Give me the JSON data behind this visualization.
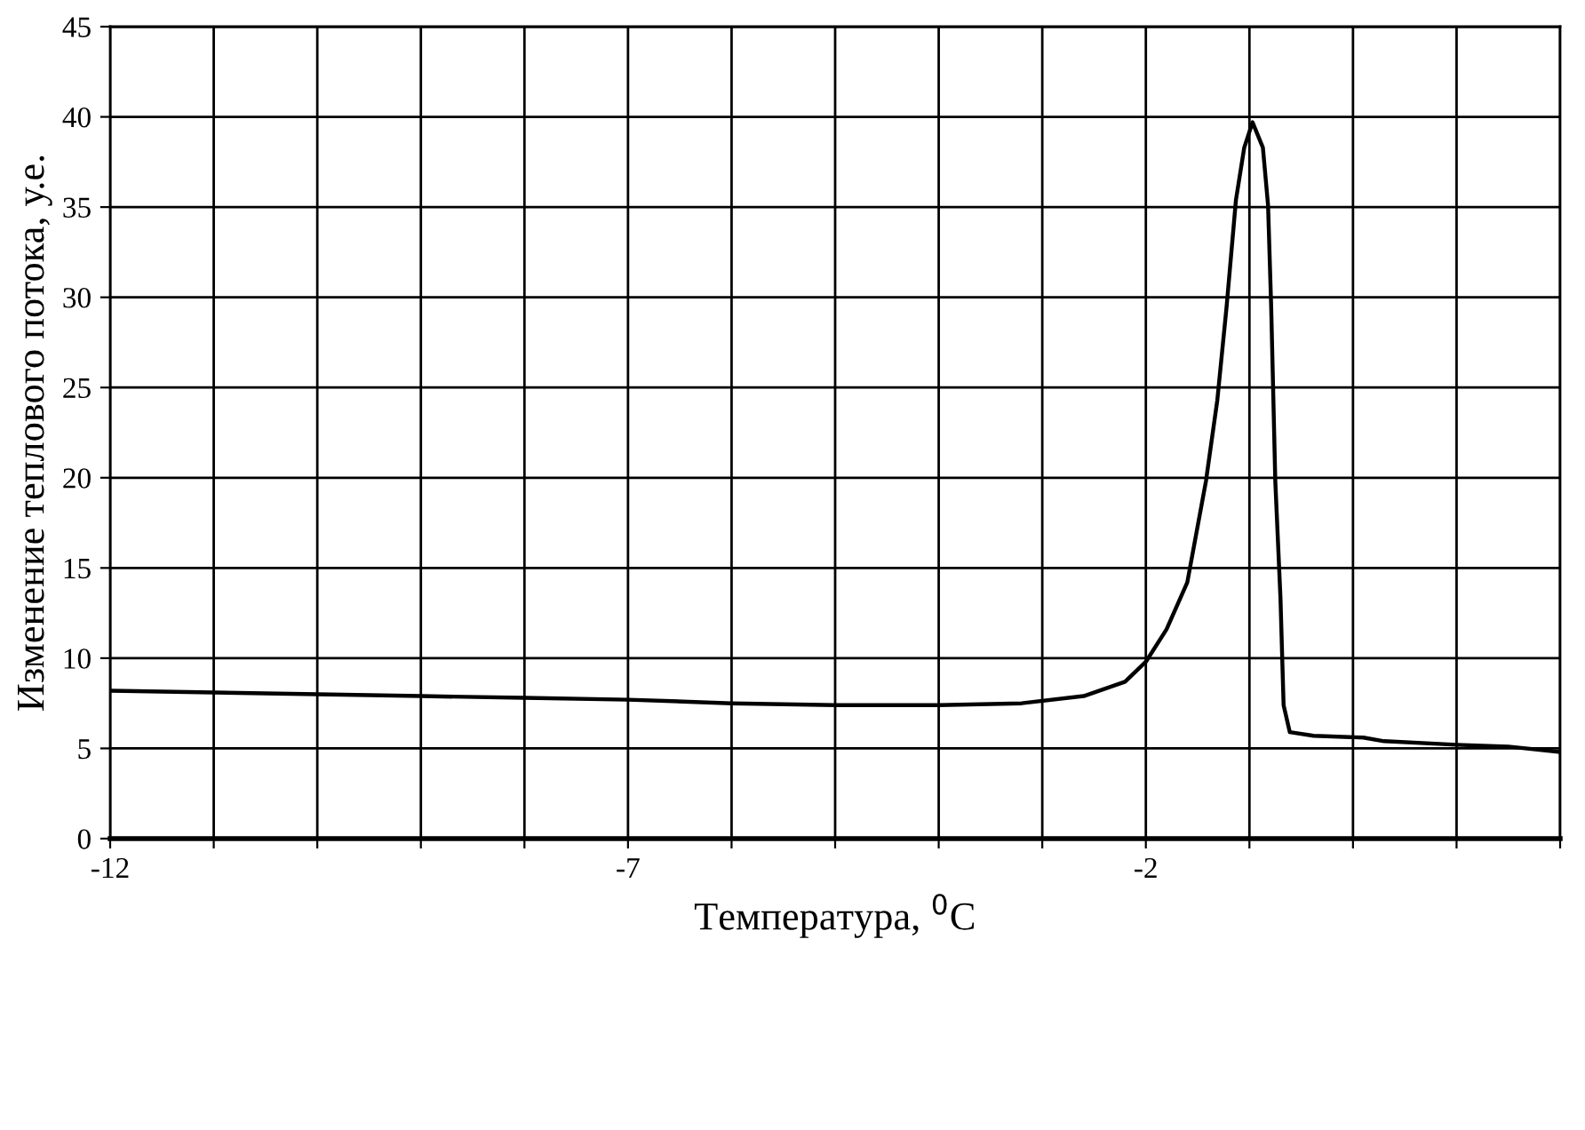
{
  "chart_data": {
    "type": "line",
    "xlabel": "Температура, $^{0}$C",
    "ylabel": "Изменение теплового потока, у.е.",
    "x": [
      -12,
      -11,
      -10,
      -9,
      -8,
      -7,
      -6,
      -5,
      -4,
      -3.2,
      -2.6,
      -2.2,
      -2,
      -1.8,
      -1.6,
      -1.42,
      -1.31,
      -1.22,
      -1.13,
      -1.05,
      -0.97,
      -0.87,
      -0.82,
      -0.79,
      -0.75,
      -0.7,
      -0.67,
      -0.61,
      -0.38,
      0.1,
      0.3,
      1,
      1.5,
      2
    ],
    "series": [
      {
        "color": "#000000",
        "values": [
          8.2,
          8.1,
          8.0,
          7.9,
          7.8,
          7.7,
          7.5,
          7.4,
          7.4,
          7.5,
          7.9,
          8.7,
          9.8,
          11.6,
          14.2,
          19.8,
          24.3,
          29.5,
          35.4,
          38.3,
          39.7,
          38.3,
          35.1,
          29.5,
          19.8,
          13.3,
          7.4,
          5.9,
          5.7,
          5.6,
          5.4,
          5.2,
          5.1,
          4.8
        ]
      }
    ],
    "xlim": [
      -12,
      2
    ],
    "xticks": [
      -12,
      {
        "value": -11,
        "label": null
      },
      {
        "value": -10,
        "label": null
      },
      {
        "value": -9,
        "label": null
      },
      {
        "value": -8,
        "label": null
      },
      -7,
      {
        "value": -6,
        "label": null
      },
      {
        "value": -5,
        "label": null
      },
      {
        "value": -4,
        "label": null
      },
      {
        "value": -3,
        "label": null
      },
      -2,
      {
        "value": -1,
        "label": null
      },
      {
        "value": 0,
        "label": null
      },
      {
        "value": 1,
        "label": null
      },
      {
        "value": 2,
        "label": null
      }
    ],
    "ylim": [
      0,
      45
    ],
    "yticks": [
      0,
      5,
      10,
      15,
      20,
      25,
      30,
      35,
      40,
      45
    ],
    "grid": true,
    "marker": "none",
    "line_style": "solid",
    "legend": false
  }
}
